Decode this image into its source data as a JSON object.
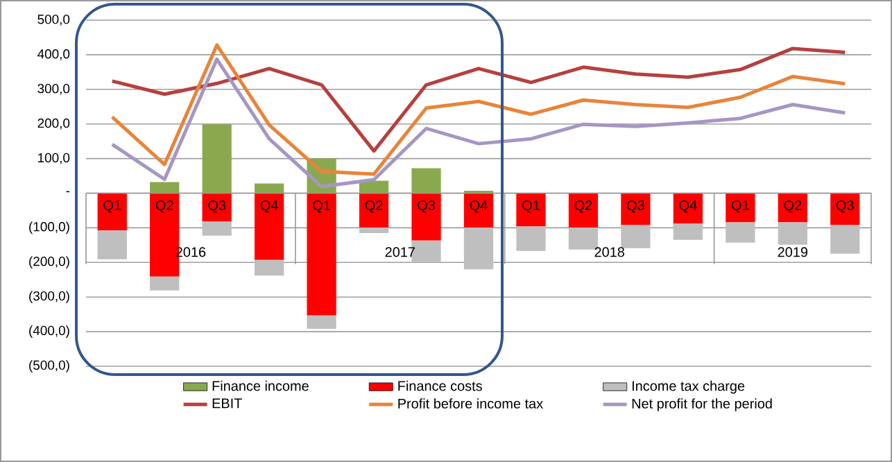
{
  "chart_data": {
    "type": "bar",
    "stacked": true,
    "grid": "y",
    "legend": "bottom",
    "categories": [
      "Q1",
      "Q2",
      "Q3",
      "Q4",
      "Q1",
      "Q2",
      "Q3",
      "Q4",
      "Q1",
      "Q2",
      "Q3",
      "Q4",
      "Q1",
      "Q2",
      "Q3"
    ],
    "annotations": [
      "2016",
      "2017",
      "2018",
      "2019"
    ],
    "ylim": [
      -500,
      500
    ],
    "yticks": [
      {
        "value": -500,
        "label": "(500,0)"
      },
      {
        "value": -400,
        "label": "(400,0)"
      },
      {
        "value": -300,
        "label": "(300,0)"
      },
      {
        "value": -200,
        "label": "(200,0)"
      },
      {
        "value": -100,
        "label": "(100,0)"
      },
      {
        "value": 0,
        "label": "-"
      },
      {
        "value": 100,
        "label": "100,0"
      },
      {
        "value": 200,
        "label": "200,0"
      },
      {
        "value": 300,
        "label": "300,0"
      },
      {
        "value": 400,
        "label": "400,0"
      },
      {
        "value": 500,
        "label": "500,0"
      }
    ],
    "series": [
      {
        "name": "Finance income",
        "color": "#8aa94f",
        "values": [
          0,
          32,
          199,
          28,
          100,
          36,
          72,
          7,
          0,
          0,
          0,
          0,
          0,
          0,
          0
        ]
      },
      {
        "name": "Finance costs",
        "color": "#ff0000",
        "values": [
          -107,
          -241,
          -82,
          -193,
          -353,
          -99,
          -137,
          -99,
          -96,
          -99,
          -92,
          -88,
          -84,
          -84,
          -92
        ]
      },
      {
        "name": "Income tax charge",
        "color": "#bfbfbf",
        "values": [
          -84,
          -40,
          -41,
          -45,
          -39,
          -16,
          -61,
          -121,
          -71,
          -64,
          -67,
          -47,
          -59,
          -65,
          -83
        ]
      },
      {
        "name": "EBIT",
        "type": "line",
        "color": "#b5403f",
        "values": [
          324,
          286,
          317,
          360,
          313,
          122,
          313,
          360,
          320,
          364,
          344,
          335,
          357,
          418,
          407
        ]
      },
      {
        "name": "Profit before income tax",
        "type": "line",
        "color": "#e8843a",
        "values": [
          220,
          83,
          428,
          197,
          63,
          55,
          246,
          265,
          228,
          269,
          256,
          248,
          277,
          337,
          316
        ]
      },
      {
        "name": "Net profit for the period",
        "type": "line",
        "color": "#a596c4",
        "values": [
          141,
          40,
          387,
          157,
          19,
          39,
          187,
          143,
          157,
          199,
          193,
          203,
          216,
          256,
          232
        ]
      }
    ]
  }
}
